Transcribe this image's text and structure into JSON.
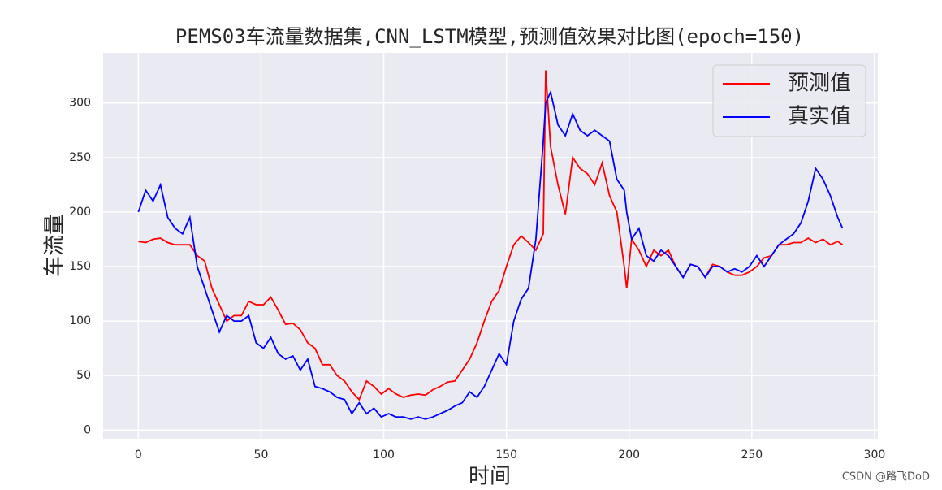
{
  "chart_data": {
    "type": "line",
    "title": "PEMS03车流量数据集,CNN_LSTM模型,预测值效果对比图(epoch=150)",
    "x_label": "时间",
    "y_label": "车流量",
    "x": [
      0,
      3,
      6,
      9,
      12,
      15,
      18,
      21,
      24,
      27,
      30,
      33,
      36,
      39,
      42,
      45,
      48,
      51,
      54,
      57,
      60,
      63,
      66,
      69,
      72,
      75,
      78,
      81,
      84,
      87,
      90,
      93,
      96,
      99,
      102,
      105,
      108,
      111,
      114,
      117,
      120,
      123,
      126,
      129,
      132,
      135,
      138,
      141,
      144,
      147,
      150,
      153,
      156,
      159,
      162,
      165,
      166,
      168,
      171,
      174,
      177,
      180,
      183,
      186,
      189,
      192,
      195,
      198,
      199,
      201,
      204,
      207,
      210,
      213,
      216,
      219,
      222,
      225,
      228,
      231,
      234,
      237,
      240,
      243,
      246,
      249,
      252,
      255,
      258,
      261,
      264,
      267,
      270,
      273,
      276,
      279,
      282,
      285,
      287
    ],
    "series": [
      {
        "name": "预测值",
        "color": "#ff0000",
        "values": [
          173,
          172,
          175,
          176,
          172,
          170,
          170,
          170,
          160,
          155,
          130,
          115,
          100,
          105,
          105,
          118,
          115,
          115,
          122,
          110,
          97,
          98,
          92,
          80,
          75,
          60,
          60,
          50,
          45,
          35,
          28,
          45,
          40,
          33,
          38,
          33,
          30,
          32,
          33,
          32,
          37,
          40,
          44,
          45,
          55,
          65,
          80,
          100,
          118,
          128,
          150,
          170,
          178,
          172,
          165,
          180,
          330,
          260,
          225,
          198,
          250,
          240,
          235,
          225,
          245,
          215,
          200,
          150,
          130,
          175,
          165,
          150,
          165,
          160,
          165,
          150,
          140,
          152,
          150,
          140,
          152,
          150,
          145,
          142,
          142,
          145,
          150,
          158,
          160,
          170,
          170,
          172,
          172,
          176,
          172,
          175,
          170,
          173,
          170
        ]
      },
      {
        "name": "真实值",
        "color": "#0000ff",
        "values": [
          200,
          220,
          210,
          225,
          195,
          185,
          180,
          195,
          150,
          130,
          110,
          90,
          105,
          100,
          100,
          105,
          80,
          75,
          85,
          70,
          65,
          68,
          55,
          65,
          40,
          38,
          35,
          30,
          28,
          15,
          25,
          15,
          20,
          12,
          15,
          12,
          12,
          10,
          12,
          10,
          12,
          15,
          18,
          22,
          25,
          35,
          30,
          40,
          55,
          70,
          60,
          100,
          120,
          130,
          175,
          265,
          300,
          310,
          280,
          270,
          290,
          275,
          270,
          275,
          270,
          265,
          230,
          220,
          200,
          175,
          185,
          160,
          155,
          165,
          160,
          150,
          140,
          152,
          150,
          140,
          150,
          150,
          145,
          148,
          145,
          150,
          160,
          150,
          160,
          170,
          175,
          180,
          190,
          210,
          240,
          230,
          215,
          195,
          185
        ]
      }
    ],
    "xlim": [
      -14.35,
      301.35
    ],
    "ylim": [
      -8,
      346
    ],
    "xticks": [
      0,
      50,
      100,
      150,
      200,
      250,
      300
    ],
    "yticks": [
      0,
      50,
      100,
      150,
      200,
      250,
      300
    ],
    "grid": true,
    "legend": "upper right",
    "watermark": "CSDN @路飞DoD"
  }
}
